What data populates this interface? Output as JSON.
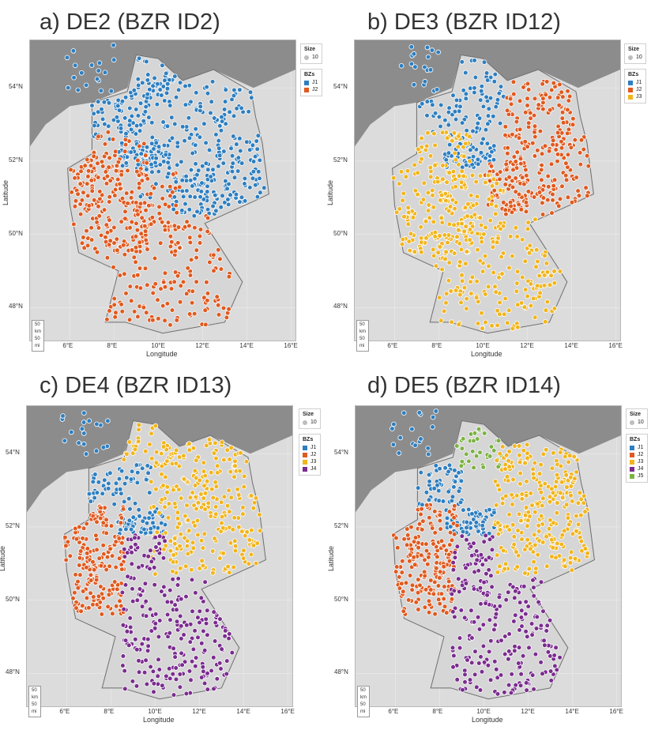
{
  "colors": {
    "J1": "#2e7fc0",
    "J2": "#e05a1f",
    "J3": "#f2b51c",
    "J4": "#7b2c8f",
    "J5": "#7cb342",
    "land": "#dcdcdc",
    "sea": "#8c8c8c",
    "border": "#a6a6a6"
  },
  "axes": {
    "xlabel": "Longitude",
    "ylabel": "Latitude",
    "xticks": [
      "6°E",
      "8°E",
      "10°E",
      "12°E",
      "14°E",
      "16°E"
    ],
    "yticks": [
      "54°N",
      "52°N",
      "50°N",
      "48°N"
    ],
    "xrange": [
      4.2,
      16.2
    ],
    "yrange": [
      47.1,
      55.3
    ]
  },
  "scale": {
    "km": "50 km",
    "mi": "50 mi"
  },
  "legend": {
    "size_title": "Size",
    "size_value": "10",
    "bz_title": "BZs"
  },
  "chart_data": [
    {
      "type": "scatter",
      "title": "a) DE2 (BZR ID2)",
      "zones": [
        "J1",
        "J2"
      ],
      "regions": [
        {
          "zone": "J1",
          "n": 260,
          "lon": [
            9.0,
            14.8
          ],
          "lat": [
            51.0,
            54.3
          ]
        },
        {
          "zone": "J1",
          "n": 50,
          "lon": [
            7.0,
            9.0
          ],
          "lat": [
            52.6,
            53.7
          ]
        },
        {
          "zone": "J1",
          "n": 60,
          "lon": [
            8.2,
            10.5
          ],
          "lat": [
            51.8,
            52.5
          ]
        },
        {
          "zone": "J1",
          "n": 70,
          "lon": [
            10.5,
            14.0
          ],
          "lat": [
            50.5,
            51.6
          ]
        },
        {
          "zone": "J1",
          "n": 18,
          "lon": [
            5.8,
            8.0
          ],
          "lat": [
            53.9,
            55.2
          ]
        },
        {
          "zone": "J1",
          "n": 30,
          "lon": [
            8.5,
            11.0
          ],
          "lat": [
            53.7,
            54.9
          ]
        },
        {
          "zone": "J2",
          "n": 200,
          "lon": [
            5.9,
            9.5
          ],
          "lat": [
            49.5,
            52.8
          ]
        },
        {
          "zone": "J2",
          "n": 180,
          "lon": [
            7.6,
            13.5
          ],
          "lat": [
            47.4,
            50.5
          ]
        },
        {
          "zone": "J2",
          "n": 40,
          "lon": [
            9.0,
            11.0
          ],
          "lat": [
            50.0,
            51.8
          ]
        }
      ]
    },
    {
      "type": "scatter",
      "title": "b) DE3 (BZR ID12)",
      "zones": [
        "J1",
        "J2",
        "J3"
      ],
      "regions": [
        {
          "zone": "J1",
          "n": 55,
          "lon": [
            7.0,
            11.0
          ],
          "lat": [
            52.6,
            53.7
          ]
        },
        {
          "zone": "J1",
          "n": 60,
          "lon": [
            8.2,
            10.5
          ],
          "lat": [
            51.8,
            52.5
          ]
        },
        {
          "zone": "J1",
          "n": 18,
          "lon": [
            5.8,
            8.0
          ],
          "lat": [
            53.9,
            55.2
          ]
        },
        {
          "zone": "J1",
          "n": 30,
          "lon": [
            8.5,
            11.0
          ],
          "lat": [
            53.7,
            54.9
          ]
        },
        {
          "zone": "J2",
          "n": 230,
          "lon": [
            11.0,
            14.8
          ],
          "lat": [
            50.5,
            54.2
          ]
        },
        {
          "zone": "J2",
          "n": 60,
          "lon": [
            10.0,
            12.0
          ],
          "lat": [
            50.6,
            52.0
          ]
        },
        {
          "zone": "J3",
          "n": 180,
          "lon": [
            5.9,
            9.5
          ],
          "lat": [
            49.5,
            52.8
          ]
        },
        {
          "zone": "J3",
          "n": 180,
          "lon": [
            7.6,
            13.5
          ],
          "lat": [
            47.4,
            50.5
          ]
        },
        {
          "zone": "J3",
          "n": 40,
          "lon": [
            9.0,
            11.0
          ],
          "lat": [
            50.0,
            51.8
          ]
        }
      ]
    },
    {
      "type": "scatter",
      "title": "c) DE4 (BZR ID13)",
      "zones": [
        "J1",
        "J2",
        "J3",
        "J4"
      ],
      "regions": [
        {
          "zone": "J1",
          "n": 55,
          "lon": [
            7.0,
            9.8
          ],
          "lat": [
            52.6,
            53.7
          ]
        },
        {
          "zone": "J1",
          "n": 60,
          "lon": [
            8.2,
            10.5
          ],
          "lat": [
            51.8,
            52.5
          ]
        },
        {
          "zone": "J1",
          "n": 18,
          "lon": [
            5.8,
            8.0
          ],
          "lat": [
            53.9,
            55.2
          ]
        },
        {
          "zone": "J3",
          "n": 260,
          "lon": [
            9.8,
            14.8
          ],
          "lat": [
            50.7,
            54.4
          ]
        },
        {
          "zone": "J3",
          "n": 25,
          "lon": [
            8.5,
            11.0
          ],
          "lat": [
            53.7,
            54.9
          ]
        },
        {
          "zone": "J2",
          "n": 200,
          "lon": [
            5.9,
            8.6
          ],
          "lat": [
            49.6,
            52.6
          ]
        },
        {
          "zone": "J4",
          "n": 200,
          "lon": [
            8.5,
            13.5
          ],
          "lat": [
            47.4,
            50.6
          ]
        },
        {
          "zone": "J4",
          "n": 40,
          "lon": [
            8.6,
            10.5
          ],
          "lat": [
            50.6,
            51.8
          ]
        }
      ]
    },
    {
      "type": "scatter",
      "title": "d) DE5 (BZR ID14)",
      "zones": [
        "J1",
        "J2",
        "J3",
        "J4",
        "J5"
      ],
      "regions": [
        {
          "zone": "J1",
          "n": 55,
          "lon": [
            7.0,
            9.0
          ],
          "lat": [
            52.6,
            53.7
          ]
        },
        {
          "zone": "J1",
          "n": 60,
          "lon": [
            8.2,
            10.5
          ],
          "lat": [
            51.8,
            52.5
          ]
        },
        {
          "zone": "J1",
          "n": 18,
          "lon": [
            5.8,
            8.0
          ],
          "lat": [
            53.9,
            55.2
          ]
        },
        {
          "zone": "J5",
          "n": 35,
          "lon": [
            8.5,
            10.8
          ],
          "lat": [
            53.6,
            55.0
          ]
        },
        {
          "zone": "J3",
          "n": 260,
          "lon": [
            10.5,
            14.8
          ],
          "lat": [
            50.7,
            54.3
          ]
        },
        {
          "zone": "J2",
          "n": 200,
          "lon": [
            5.9,
            8.8
          ],
          "lat": [
            49.6,
            52.6
          ]
        },
        {
          "zone": "J4",
          "n": 200,
          "lon": [
            8.5,
            13.5
          ],
          "lat": [
            47.4,
            50.6
          ]
        },
        {
          "zone": "J4",
          "n": 40,
          "lon": [
            8.6,
            10.5
          ],
          "lat": [
            50.6,
            51.8
          ]
        }
      ]
    }
  ]
}
